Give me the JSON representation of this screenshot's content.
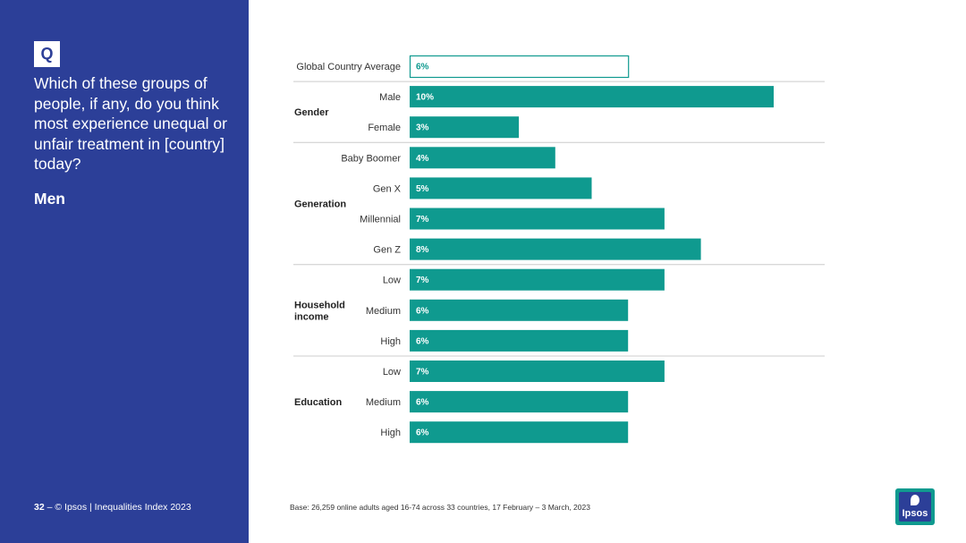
{
  "sidebar": {
    "badge": "Q",
    "question": "Which of these groups of people, if any, do you think most experience unequal or unfair treatment in [country] today?",
    "subject": "Men",
    "page_number": "32",
    "page_sep": " – ",
    "copyright": "© Ipsos | Inequalities Index 2023"
  },
  "footer": {
    "base": "Base: 26,259 online adults aged 16-74 across 33 countries, 17 February – 3 March, 2023"
  },
  "logo": {
    "text": "Ipsos"
  },
  "colors": {
    "sidebar": "#2c3f98",
    "bar": "#0f9a8f",
    "divider": "#cccccc"
  },
  "chart_data": {
    "type": "bar",
    "orientation": "horizontal",
    "unit": "%",
    "xlim": [
      0,
      12
    ],
    "rows": [
      {
        "group": "",
        "category": "Global Country Average",
        "value": 6,
        "label": "6%",
        "style": "outline"
      },
      {
        "group": "Gender",
        "category": "Male",
        "value": 10,
        "label": "10%"
      },
      {
        "group": "Gender",
        "category": "Female",
        "value": 3,
        "label": "3%"
      },
      {
        "group": "Generation",
        "category": "Baby Boomer",
        "value": 4,
        "label": "4%"
      },
      {
        "group": "Generation",
        "category": "Gen X",
        "value": 5,
        "label": "5%"
      },
      {
        "group": "Generation",
        "category": "Millennial",
        "value": 7,
        "label": "7%"
      },
      {
        "group": "Generation",
        "category": "Gen Z",
        "value": 8,
        "label": "8%"
      },
      {
        "group": "Household income",
        "category": "Low",
        "value": 7,
        "label": "7%"
      },
      {
        "group": "Household income",
        "category": "Medium",
        "value": 6,
        "label": "6%"
      },
      {
        "group": "Household income",
        "category": "High",
        "value": 6,
        "label": "6%"
      },
      {
        "group": "Education",
        "category": "Low",
        "value": 7,
        "label": "7%"
      },
      {
        "group": "Education",
        "category": "Medium",
        "value": 6,
        "label": "6%"
      },
      {
        "group": "Education",
        "category": "High",
        "value": 6,
        "label": "6%"
      }
    ],
    "groups": [
      {
        "name": "Gender",
        "lines": [
          "Gender"
        ]
      },
      {
        "name": "Generation",
        "lines": [
          "Generation"
        ]
      },
      {
        "name": "Household income",
        "lines": [
          "Household",
          "income"
        ]
      },
      {
        "name": "Education",
        "lines": [
          "Education"
        ]
      }
    ]
  }
}
